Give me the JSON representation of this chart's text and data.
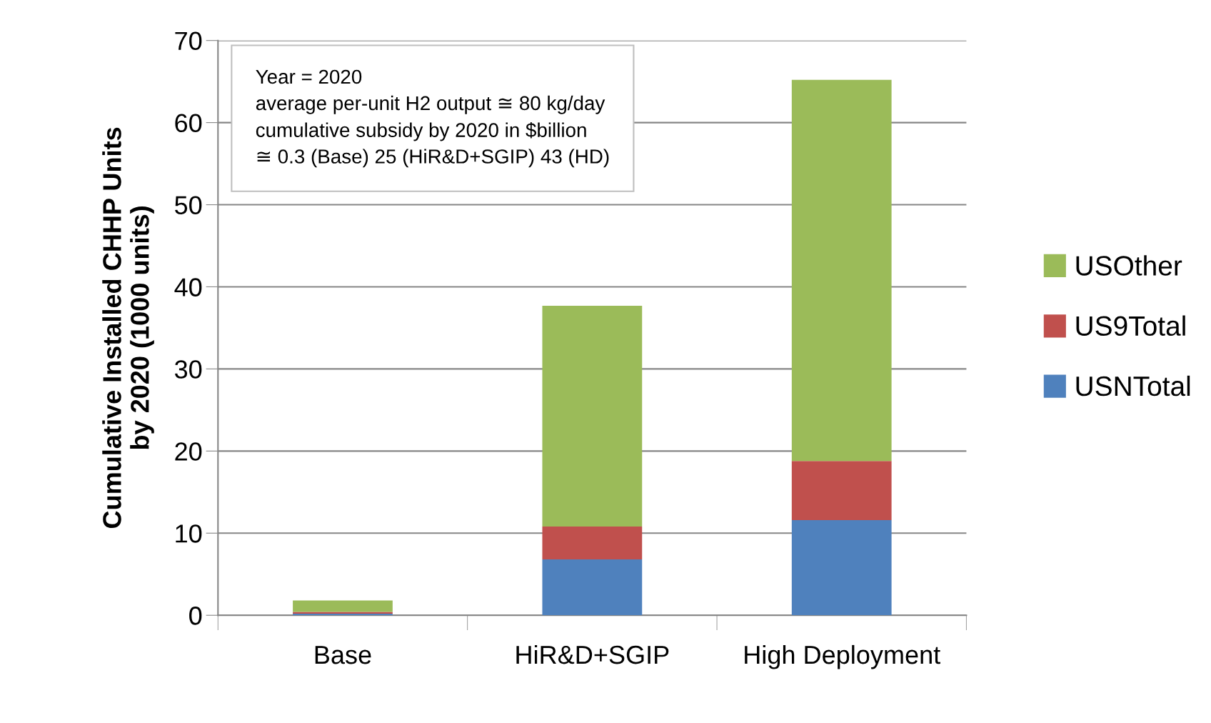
{
  "chart_data": {
    "type": "bar",
    "stacked": true,
    "categories": [
      "Base",
      "HiR&D+SGIP",
      "High Deployment"
    ],
    "ylabel": "Cumulative Installed CHHP Units\nby 2020 (1000 units)",
    "series": [
      {
        "name": "USNTotal",
        "color": "#4f81bd",
        "values": [
          0.2,
          6.8,
          11.6
        ]
      },
      {
        "name": "US9Total",
        "color": "#c0504d",
        "values": [
          0.2,
          4.0,
          7.2
        ]
      },
      {
        "name": "USOther",
        "color": "#9bbb59",
        "values": [
          1.4,
          26.9,
          46.4
        ]
      }
    ],
    "ylim": [
      0,
      70
    ],
    "yticks": [
      0,
      10,
      20,
      30,
      40,
      50,
      60,
      70
    ],
    "grid": "y",
    "legend": "right",
    "annotations": [
      "Year = 2020\naverage per-unit H2 output ≅ 80 kg/day\ncumulative subsidy by 2020 in $billion\n≅ 0.3 (Base) 25 (HiR&D+SGIP) 43 (HD)"
    ]
  }
}
